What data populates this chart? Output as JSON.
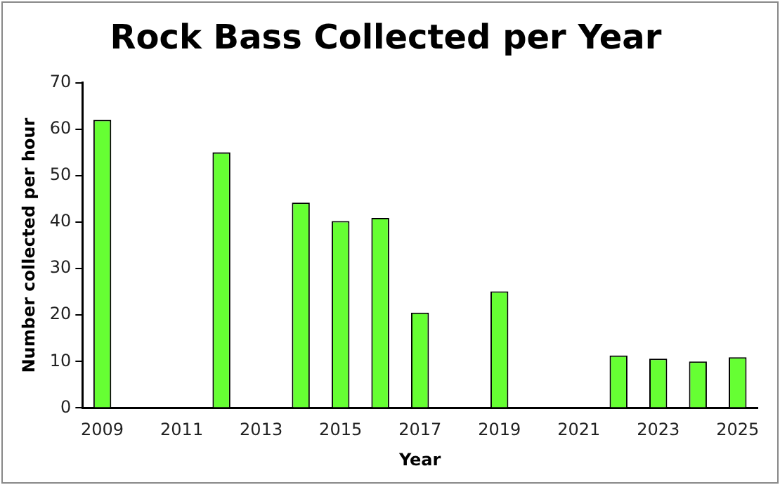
{
  "chart_data": {
    "type": "bar",
    "title": "Rock Bass Collected per Year",
    "xlabel": "Year",
    "ylabel": "Number collected per hour",
    "categories": [
      "2009",
      null,
      "2011",
      null,
      "2013",
      null,
      "2015",
      null,
      "2017",
      null,
      "2019",
      null,
      "2021",
      null,
      "2023",
      null,
      "2025"
    ],
    "values": [
      62,
      null,
      null,
      55,
      null,
      44.2,
      40.2,
      40.9,
      20.5,
      null,
      25.1,
      null,
      null,
      11.3,
      10.6,
      10,
      10.9
    ],
    "color": "#66ff33",
    "ylim": [
      0,
      70
    ],
    "yticks": [
      0,
      10,
      20,
      30,
      40,
      50,
      60,
      70
    ],
    "grid": false,
    "legend": false
  }
}
